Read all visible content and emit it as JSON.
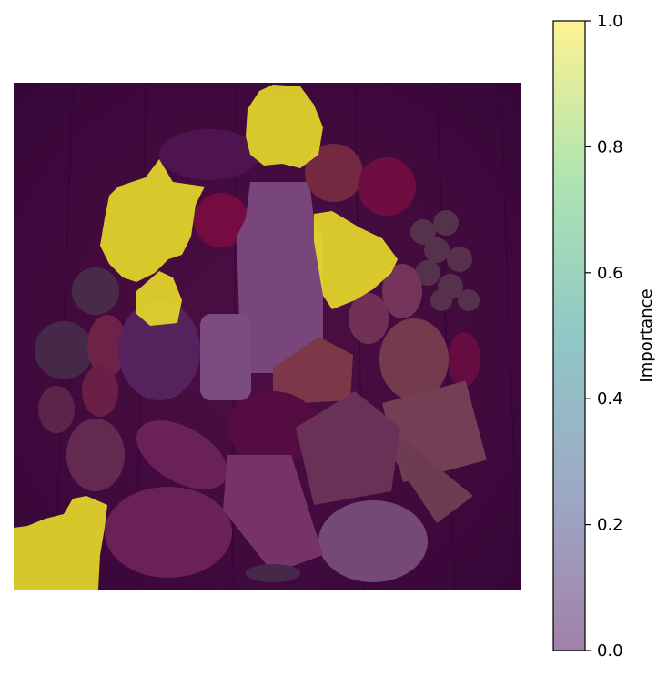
{
  "colorbar": {
    "label": "Importance",
    "ticks": [
      "0.0",
      "0.2",
      "0.4",
      "0.6",
      "0.8",
      "1.0"
    ],
    "tick_values": [
      0.0,
      0.2,
      0.4,
      0.6,
      0.8,
      1.0
    ],
    "range": [
      0.0,
      1.0
    ],
    "colormap": [
      "#440154",
      "#3b528b",
      "#21918c",
      "#5ec962",
      "#fde725"
    ],
    "overlay_alpha": 0.5
  },
  "image": {
    "description_icon": "food-assortment-photo",
    "overlay_color_low": "#440154",
    "overlay_color_high": "#fde725"
  }
}
